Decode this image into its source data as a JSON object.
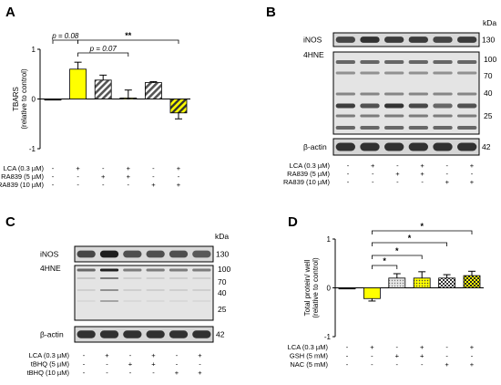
{
  "panels": {
    "A": {
      "letter": "A",
      "chart_data": {
        "type": "bar",
        "ylabel": "TBARS",
        "ylabel_sub": "(relative to control)",
        "ylim": [
          -1,
          1
        ],
        "yticks": [
          "1",
          "0",
          "-1"
        ],
        "values": [
          0.0,
          0.6,
          0.38,
          0.02,
          0.33,
          -0.28
        ],
        "errors": [
          0.0,
          0.14,
          0.1,
          0.16,
          0.02,
          0.12
        ],
        "fills": [
          "#000000",
          "#ffff00",
          "hatch-gray",
          "hatch-yellow",
          "hatch-gray",
          "hatch-yellow"
        ],
        "annotations": [
          {
            "from": 0,
            "to": 1,
            "text": "p = 0.08"
          },
          {
            "from": 1,
            "to": 3,
            "text": "p = 0.07"
          },
          {
            "from": 1,
            "to": 5,
            "text": "**"
          }
        ]
      },
      "conditions": [
        {
          "label": "LCA (0.3 µM)",
          "marks": [
            "-",
            "+",
            "-",
            "+",
            "-",
            "+"
          ]
        },
        {
          "label": "RA839 (5 µM)",
          "marks": [
            "-",
            "-",
            "+",
            "+",
            "-",
            "-"
          ]
        },
        {
          "label": "RA839 (10 µM)",
          "marks": [
            "-",
            "-",
            "-",
            "-",
            "+",
            "+"
          ]
        }
      ]
    },
    "B": {
      "letter": "B",
      "kda_title": "kDa",
      "blots": [
        {
          "name": "iNOS",
          "kda": [
            "130"
          ]
        },
        {
          "name": "4HNE",
          "kda": [
            "100",
            "70",
            "40",
            "25"
          ]
        },
        {
          "name": "β-actin",
          "kda": [
            "42"
          ]
        }
      ],
      "conditions": [
        {
          "label": "LCA (0.3 µM)",
          "marks": [
            "-",
            "+",
            "-",
            "+",
            "-",
            "+"
          ]
        },
        {
          "label": "RA839 (5 µM)",
          "marks": [
            "-",
            "-",
            "+",
            "+",
            "-",
            "-"
          ]
        },
        {
          "label": "RA839 (10 µM)",
          "marks": [
            "-",
            "-",
            "-",
            "-",
            "+",
            "+"
          ]
        }
      ]
    },
    "C": {
      "letter": "C",
      "kda_title": "kDa",
      "blots": [
        {
          "name": "iNOS",
          "kda": [
            "130"
          ]
        },
        {
          "name": "4HNE",
          "kda": [
            "100",
            "70",
            "40",
            "25"
          ]
        },
        {
          "name": "β-actin",
          "kda": [
            "42"
          ]
        }
      ],
      "conditions": [
        {
          "label": "LCA (0.3 µM)",
          "marks": [
            "-",
            "+",
            "-",
            "+",
            "-",
            "+"
          ]
        },
        {
          "label": "tBHQ (5 µM)",
          "marks": [
            "-",
            "-",
            "+",
            "+",
            "-",
            "-"
          ]
        },
        {
          "label": "tBHQ (10 µM)",
          "marks": [
            "-",
            "-",
            "-",
            "-",
            "+",
            "+"
          ]
        }
      ]
    },
    "D": {
      "letter": "D",
      "chart_data": {
        "type": "bar",
        "ylabel": "Total protein/ well",
        "ylabel_sub": "(relative to control)",
        "ylim": [
          -1,
          1
        ],
        "yticks": [
          "1",
          "0",
          "-1"
        ],
        "values": [
          0.0,
          -0.22,
          0.2,
          0.2,
          0.2,
          0.25
        ],
        "errors": [
          0.0,
          0.05,
          0.09,
          0.13,
          0.07,
          0.09
        ],
        "fills": [
          "#000000",
          "#ffff00",
          "dots-gray",
          "dots-yellow",
          "check-gray",
          "check-yellow"
        ],
        "annotations": [
          {
            "from": 1,
            "to": 2,
            "text": "*"
          },
          {
            "from": 1,
            "to": 3,
            "text": "*"
          },
          {
            "from": 1,
            "to": 4,
            "text": "*"
          },
          {
            "from": 1,
            "to": 5,
            "text": "*"
          }
        ]
      },
      "conditions": [
        {
          "label": "LCA (0.3 µM)",
          "marks": [
            "-",
            "+",
            "-",
            "+",
            "-",
            "+"
          ]
        },
        {
          "label": "GSH (5 mM)",
          "marks": [
            "-",
            "-",
            "+",
            "+",
            "-",
            "-"
          ]
        },
        {
          "label": "NAC (5 mM)",
          "marks": [
            "-",
            "-",
            "-",
            "-",
            "+",
            "+"
          ]
        }
      ]
    }
  }
}
